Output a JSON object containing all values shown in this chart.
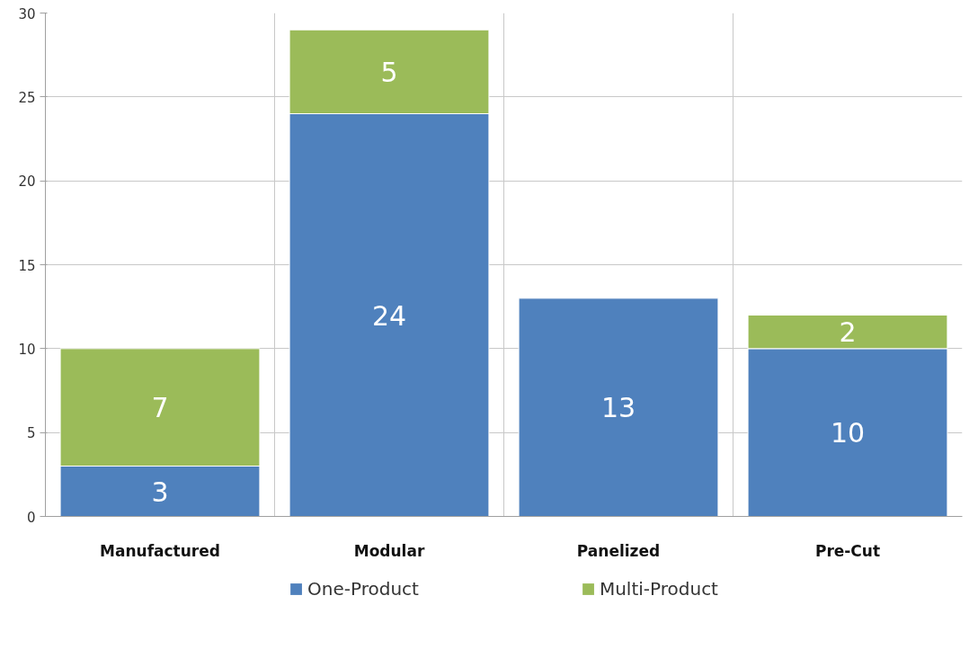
{
  "chart_data": {
    "type": "bar",
    "stacked": true,
    "categories": [
      "Manufactured",
      "Modular",
      "Panelized",
      "Pre-Cut"
    ],
    "series": [
      {
        "name": "One-Product",
        "color": "#4f81bd",
        "values": [
          3,
          24,
          13,
          10
        ]
      },
      {
        "name": "Multi-Product",
        "color": "#9bbb59",
        "values": [
          7,
          5,
          null,
          2
        ]
      }
    ],
    "ylim": [
      0,
      30
    ],
    "yticks": [
      0,
      5,
      10,
      15,
      20,
      25,
      30
    ],
    "grid": true,
    "legend": "bottom",
    "data_labels": true
  }
}
